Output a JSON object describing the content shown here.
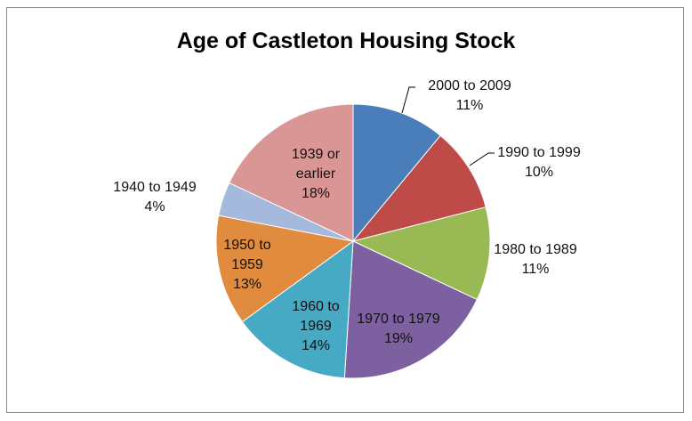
{
  "chart_data": {
    "type": "pie",
    "title": "Age of Castleton Housing Stock",
    "categories": [
      "2000 to 2009",
      "1990 to 1999",
      "1980 to 1989",
      "1970 to 1979",
      "1960 to 1969",
      "1950 to 1959",
      "1940 to 1949",
      "1939 or earlier"
    ],
    "values": [
      11,
      10,
      11,
      19,
      14,
      13,
      4,
      18
    ],
    "value_labels": [
      "11%",
      "10%",
      "11%",
      "19%",
      "14%",
      "13%",
      "4%",
      "18%"
    ],
    "colors": [
      "#4a7ebb",
      "#be4b48",
      "#98b954",
      "#7d60a0",
      "#46aac5",
      "#e08b3e",
      "#a5b9dd",
      "#d99694"
    ]
  }
}
